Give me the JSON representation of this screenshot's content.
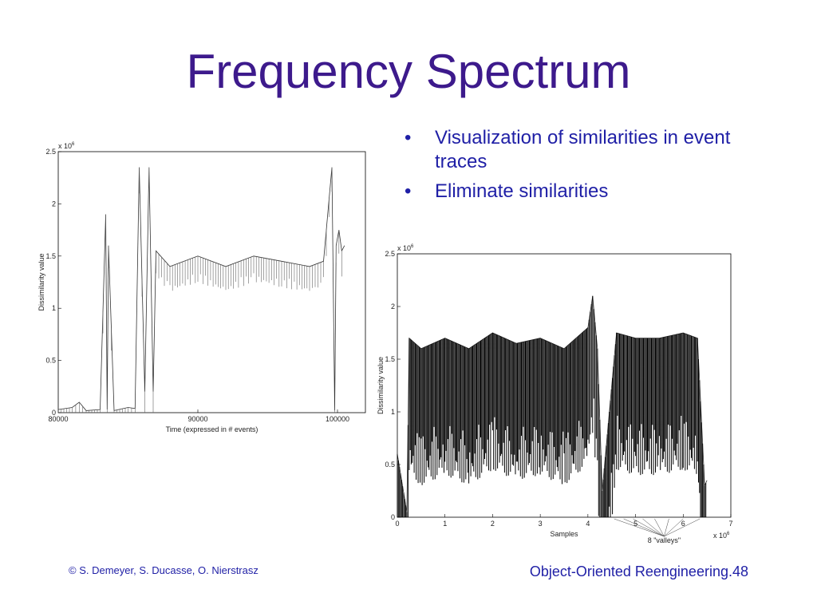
{
  "slide": {
    "title": "Frequency Spectrum",
    "bullets": [
      "Visualization of similarities in event traces",
      "Eliminate similarities"
    ],
    "bullet_glyph": "•",
    "footer_left": "© S. Demeyer, S. Ducasse, O. Nierstrasz",
    "footer_right": "Object-Oriented Reengineering.48",
    "title_color": "#3d1a8c",
    "text_color": "#1f1fa6"
  },
  "chart_data": [
    {
      "type": "line",
      "xlabel": "Time (expressed in # events)",
      "ylabel": "Dissimilarity value",
      "y_scale_label": "x 10^6",
      "xlim": [
        80000,
        102000
      ],
      "ylim": [
        0,
        2.5
      ],
      "x_ticks": [
        "80000",
        "90000",
        "100000"
      ],
      "y_ticks": [
        "0",
        "0.5",
        "1",
        "1.5",
        "2",
        "2.5"
      ],
      "grid": false,
      "series": [
        {
          "x": [
            80000,
            81000,
            81500,
            82000,
            83000,
            83400,
            83500,
            83600,
            84000,
            85000,
            85500,
            85800,
            86200,
            86500,
            86800,
            87000,
            88000,
            90000,
            92000,
            94000,
            96000,
            98000,
            99000,
            99600,
            99800,
            99900,
            100100,
            100300,
            100500
          ],
          "y": [
            0.03,
            0.05,
            0.1,
            0.02,
            0.03,
            1.9,
            0.03,
            1.6,
            0.02,
            0.05,
            0.04,
            2.35,
            0.2,
            2.35,
            0.2,
            1.55,
            1.4,
            1.5,
            1.4,
            1.5,
            1.45,
            1.4,
            1.45,
            2.35,
            0.02,
            1.6,
            1.75,
            1.55,
            1.6
          ]
        }
      ]
    },
    {
      "type": "line",
      "xlabel": "Samples",
      "ylabel": "Dissimilarity value",
      "y_scale_label": "x 10^6",
      "x_scale_label": "x 10^6",
      "xlim": [
        0,
        7
      ],
      "ylim": [
        0,
        2.5
      ],
      "x_ticks": [
        "0",
        "1",
        "2",
        "3",
        "4",
        "5",
        "6",
        "7"
      ],
      "y_ticks": [
        "0",
        "0.5",
        "1",
        "1.5",
        "2",
        "2.5"
      ],
      "grid": false,
      "annotation": "8 \"valleys\"",
      "series": [
        {
          "x": [
            0,
            0.2,
            0.25,
            0.5,
            1,
            1.5,
            2,
            2.5,
            3,
            3.5,
            4,
            4.1,
            4.2,
            4.3,
            4.6,
            5,
            5.5,
            6,
            6.3,
            6.45,
            6.5
          ],
          "y": [
            0.6,
            0.05,
            1.7,
            1.6,
            1.7,
            1.6,
            1.75,
            1.65,
            1.7,
            1.6,
            1.8,
            2.1,
            1.6,
            0.25,
            1.75,
            1.7,
            1.7,
            1.75,
            1.7,
            0.3,
            0.35
          ]
        }
      ]
    }
  ]
}
